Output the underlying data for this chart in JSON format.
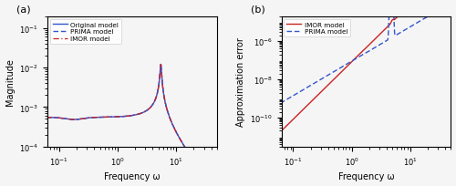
{
  "xlim": [
    0.063,
    50
  ],
  "left_ylim": [
    0.0001,
    0.2
  ],
  "right_ylim": [
    3e-12,
    2e-05
  ],
  "xlabel": "Frequency ω",
  "left_ylabel": "Magnitude",
  "right_ylabel": "Approximation error",
  "left_legend": [
    "Original model",
    "PRIMA model",
    "IMOR model"
  ],
  "right_legend": [
    "IMOR model",
    "PRIMA model"
  ],
  "label_a": "(a)",
  "label_b": "(b)",
  "orig_color": "#3355cc",
  "prima_color": "#3355cc",
  "imor_color": "#cc2222",
  "background_color": "#f5f5f5"
}
